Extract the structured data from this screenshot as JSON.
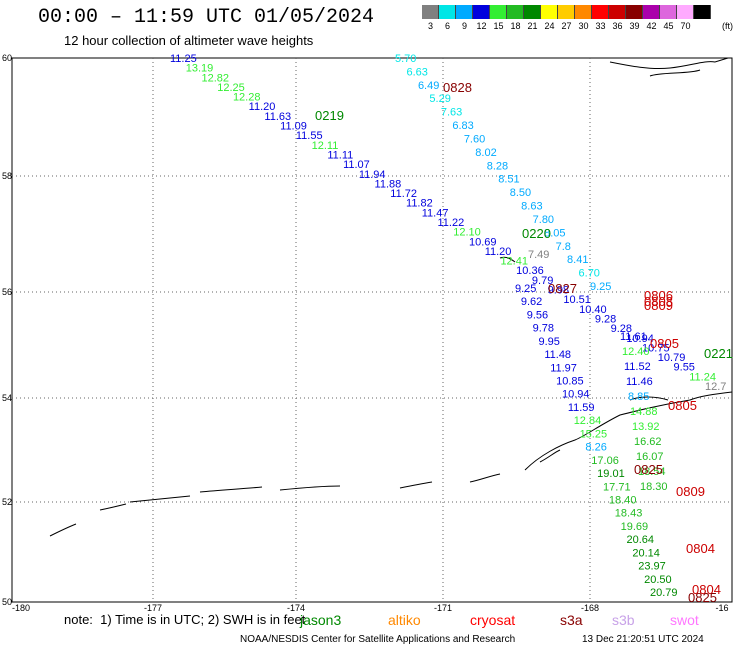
{
  "header": {
    "title": "00:00 – 11:59 UTC 01/05/2024",
    "subtitle": "12 hour collection of altimeter wave heights"
  },
  "color_scale": {
    "unit": "(ft)",
    "bins": [
      {
        "label": "3",
        "color": "#808080"
      },
      {
        "label": "6",
        "color": "#00e6e6"
      },
      {
        "label": "9",
        "color": "#00aaff"
      },
      {
        "label": "12",
        "color": "#0000dd"
      },
      {
        "label": "15",
        "color": "#33ee33"
      },
      {
        "label": "18",
        "color": "#22bb22"
      },
      {
        "label": "21",
        "color": "#008800"
      },
      {
        "label": "24",
        "color": "#ffff00"
      },
      {
        "label": "27",
        "color": "#ffcc00"
      },
      {
        "label": "30",
        "color": "#ff8800"
      },
      {
        "label": "33",
        "color": "#ff0000"
      },
      {
        "label": "36",
        "color": "#cc0000"
      },
      {
        "label": "39",
        "color": "#880000"
      },
      {
        "label": "42",
        "color": "#aa00aa"
      },
      {
        "label": "45",
        "color": "#dd66dd"
      },
      {
        "label": "70",
        "color": "#ffaaff"
      },
      {
        "label": "",
        "color": "#000000"
      }
    ]
  },
  "axes": {
    "lat_labels": [
      "60",
      "58",
      "56",
      "54",
      "52",
      "50"
    ],
    "lon_labels": [
      "-180",
      "-177",
      "-174",
      "-171",
      "-168",
      "-16"
    ]
  },
  "tracks": [
    {
      "name": "track-1",
      "label": "0219",
      "label_color": "#008800",
      "points": [
        {
          "v": "11.25",
          "c": "#0000dd"
        },
        {
          "v": "13.19",
          "c": "#33ee33"
        },
        {
          "v": "12.82",
          "c": "#33ee33"
        },
        {
          "v": "12.25",
          "c": "#33ee33"
        },
        {
          "v": "12.28",
          "c": "#33ee33"
        },
        {
          "v": "11.20",
          "c": "#0000dd"
        },
        {
          "v": "11.63",
          "c": "#0000dd"
        },
        {
          "v": "11.09",
          "c": "#0000dd"
        },
        {
          "v": "11.55",
          "c": "#0000dd"
        },
        {
          "v": "12.11",
          "c": "#33ee33"
        },
        {
          "v": "11.11",
          "c": "#0000dd"
        },
        {
          "v": "11.07",
          "c": "#0000dd"
        },
        {
          "v": "11.94",
          "c": "#0000dd"
        },
        {
          "v": "11.88",
          "c": "#0000dd"
        },
        {
          "v": "11.72",
          "c": "#0000dd"
        },
        {
          "v": "11.82",
          "c": "#0000dd"
        },
        {
          "v": "11.47",
          "c": "#0000dd"
        },
        {
          "v": "11.22",
          "c": "#0000dd"
        },
        {
          "v": "12.10",
          "c": "#33ee33"
        },
        {
          "v": "10.69",
          "c": "#0000dd"
        },
        {
          "v": "11.20",
          "c": "#0000dd"
        },
        {
          "v": "12.41",
          "c": "#33ee33"
        },
        {
          "v": "10.36",
          "c": "#0000dd"
        },
        {
          "v": "9.79",
          "c": "#0000dd"
        },
        {
          "v": "9.98",
          "c": "#0000dd"
        },
        {
          "v": "10.51",
          "c": "#0000dd"
        },
        {
          "v": "10.40",
          "c": "#0000dd"
        },
        {
          "v": "9.28",
          "c": "#0000dd"
        },
        {
          "v": "9.28",
          "c": "#0000dd"
        },
        {
          "v": "10.94",
          "c": "#0000dd"
        },
        {
          "v": "10.75",
          "c": "#0000dd"
        },
        {
          "v": "10.79",
          "c": "#0000dd"
        },
        {
          "v": "9.55",
          "c": "#0000dd"
        },
        {
          "v": "11.24",
          "c": "#33ee33"
        },
        {
          "v": "12.7",
          "c": "#808080"
        }
      ]
    },
    {
      "name": "track-2",
      "label": "0828",
      "label_color": "#880000",
      "points": [
        {
          "v": "5.70",
          "c": "#00e6e6"
        },
        {
          "v": "6.63",
          "c": "#00e6e6"
        },
        {
          "v": "6.49",
          "c": "#00aaff"
        },
        {
          "v": "5.29",
          "c": "#00e6e6"
        },
        {
          "v": "7.63",
          "c": "#00e6e6"
        },
        {
          "v": "6.83",
          "c": "#00aaff"
        },
        {
          "v": "7.60",
          "c": "#00aaff"
        },
        {
          "v": "8.02",
          "c": "#00aaff"
        },
        {
          "v": "8.28",
          "c": "#00aaff"
        },
        {
          "v": "8.51",
          "c": "#00aaff"
        },
        {
          "v": "8.50",
          "c": "#00aaff"
        },
        {
          "v": "8.63",
          "c": "#00aaff"
        },
        {
          "v": "7.80",
          "c": "#00aaff"
        },
        {
          "v": "8.05",
          "c": "#00aaff"
        },
        {
          "v": "7.8",
          "c": "#00aaff"
        },
        {
          "v": "8.41",
          "c": "#00aaff"
        },
        {
          "v": "6.70",
          "c": "#00e6e6"
        },
        {
          "v": "9.25",
          "c": "#00aaff"
        }
      ]
    },
    {
      "name": "track-3",
      "label": "0220",
      "label_color": "#008800",
      "points": [
        {
          "v": "7.49",
          "c": "#808080"
        }
      ]
    },
    {
      "name": "track-4",
      "label": "0827",
      "label_color": "#880000",
      "points": [
        {
          "v": "9.25",
          "c": "#0000dd"
        },
        {
          "v": "9.62",
          "c": "#0000dd"
        },
        {
          "v": "9.56",
          "c": "#0000dd"
        },
        {
          "v": "9.78",
          "c": "#0000dd"
        },
        {
          "v": "9.95",
          "c": "#0000dd"
        },
        {
          "v": "11.48",
          "c": "#0000dd"
        },
        {
          "v": "11.97",
          "c": "#0000dd"
        },
        {
          "v": "10.85",
          "c": "#0000dd"
        },
        {
          "v": "10.94",
          "c": "#0000dd"
        },
        {
          "v": "11.59",
          "c": "#0000dd"
        },
        {
          "v": "12.84",
          "c": "#33ee33"
        },
        {
          "v": "15.25",
          "c": "#33ee33"
        },
        {
          "v": "8.26",
          "c": "#00aaff"
        },
        {
          "v": "17.06",
          "c": "#22bb22"
        },
        {
          "v": "19.01",
          "c": "#008800"
        },
        {
          "v": "17.71",
          "c": "#22bb22"
        },
        {
          "v": "18.40",
          "c": "#22bb22"
        },
        {
          "v": "18.43",
          "c": "#22bb22"
        },
        {
          "v": "19.69",
          "c": "#22bb22"
        },
        {
          "v": "20.64",
          "c": "#008800"
        },
        {
          "v": "20.14",
          "c": "#008800"
        },
        {
          "v": "23.97",
          "c": "#008800"
        },
        {
          "v": "20.50",
          "c": "#008800"
        },
        {
          "v": "20.79",
          "c": "#008800"
        }
      ]
    },
    {
      "name": "track-5",
      "label": "0825",
      "label_color": "#880000",
      "points": [
        {
          "v": "11.61",
          "c": "#0000dd"
        },
        {
          "v": "12.40",
          "c": "#33ee33"
        },
        {
          "v": "11.52",
          "c": "#0000dd"
        },
        {
          "v": "11.46",
          "c": "#0000dd"
        },
        {
          "v": "8.85",
          "c": "#00aaff"
        },
        {
          "v": "14.88",
          "c": "#33ee33"
        },
        {
          "v": "13.92",
          "c": "#33ee33"
        },
        {
          "v": "16.62",
          "c": "#22bb22"
        },
        {
          "v": "16.07",
          "c": "#22bb22"
        },
        {
          "v": "18.54",
          "c": "#22bb22"
        },
        {
          "v": "18.30",
          "c": "#22bb22"
        }
      ]
    }
  ],
  "pass_labels": [
    {
      "text": "0221",
      "color": "#008800"
    },
    {
      "text": "0806",
      "color": "#cc0000"
    },
    {
      "text": "0808",
      "color": "#cc0000"
    },
    {
      "text": "0809",
      "color": "#cc0000"
    },
    {
      "text": "0805",
      "color": "#cc0000"
    },
    {
      "text": "0805",
      "color": "#cc0000"
    },
    {
      "text": "0809",
      "color": "#cc0000"
    },
    {
      "text": "0804",
      "color": "#cc0000"
    },
    {
      "text": "0804",
      "color": "#cc0000"
    },
    {
      "text": "0825",
      "color": "#880000"
    }
  ],
  "footer": {
    "note": "note:  1) Time is in UTC; 2) SWH is in feet",
    "satellites": [
      {
        "name": "jason3",
        "color": "#008800"
      },
      {
        "name": "altiko",
        "color": "#ff8800"
      },
      {
        "name": "cryosat",
        "color": "#ff0000"
      },
      {
        "name": "s3a",
        "color": "#880000"
      },
      {
        "name": "s3b",
        "color": "#c8a2e8"
      },
      {
        "name": "swot",
        "color": "#ff77ff"
      }
    ],
    "credit": "NOAA/NESDIS Center for Satellite Applications and Research",
    "timestamp": "13 Dec 21:20:51 UTC 2024"
  }
}
